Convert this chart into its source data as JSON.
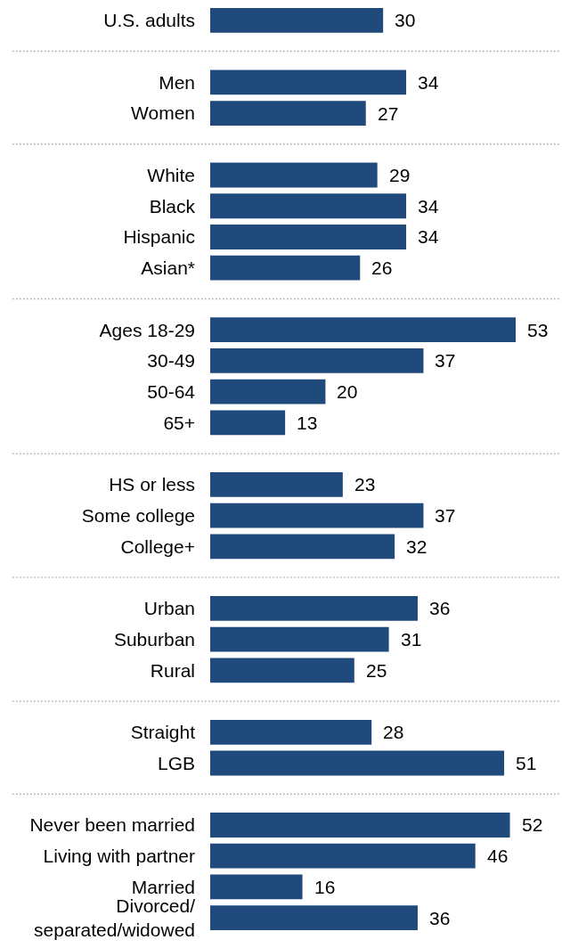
{
  "chart_data": [
    {
      "type": "bar",
      "orientation": "horizontal",
      "categories": [
        "U.S. adults"
      ],
      "values": [
        30
      ],
      "color": "#214a7c",
      "data_labels": true,
      "tick_labels": "y"
    },
    {
      "type": "bar",
      "orientation": "horizontal",
      "categories": [
        "Men",
        "Women"
      ],
      "values": [
        34,
        27
      ],
      "color": "#214a7c",
      "data_labels": true,
      "tick_labels": "y"
    },
    {
      "type": "bar",
      "orientation": "horizontal",
      "categories": [
        "White",
        "Black",
        "Hispanic",
        "Asian*"
      ],
      "values": [
        29,
        34,
        34,
        26
      ],
      "color": "#214a7c",
      "data_labels": true,
      "tick_labels": "y"
    },
    {
      "type": "bar",
      "orientation": "horizontal",
      "categories": [
        "Ages 18-29",
        "30-49",
        "50-64",
        "65+"
      ],
      "values": [
        53,
        37,
        20,
        13
      ],
      "color": "#214a7c",
      "data_labels": true,
      "tick_labels": "y"
    },
    {
      "type": "bar",
      "orientation": "horizontal",
      "categories": [
        "HS or less",
        "Some college",
        "College+"
      ],
      "values": [
        23,
        37,
        32
      ],
      "color": "#214a7c",
      "data_labels": true,
      "tick_labels": "y"
    },
    {
      "type": "bar",
      "orientation": "horizontal",
      "categories": [
        "Urban",
        "Suburban",
        "Rural"
      ],
      "values": [
        36,
        31,
        25
      ],
      "color": "#214a7c",
      "data_labels": true,
      "tick_labels": "y"
    },
    {
      "type": "bar",
      "orientation": "horizontal",
      "categories": [
        "Straight",
        "LGB"
      ],
      "values": [
        28,
        51
      ],
      "color": "#214a7c",
      "data_labels": true,
      "tick_labels": "y"
    },
    {
      "type": "bar",
      "orientation": "horizontal",
      "categories": [
        "Never been married",
        "Living with partner",
        "Married",
        "Divorced/separated/widowed"
      ],
      "values": [
        52,
        46,
        16,
        36
      ],
      "color": "#214a7c",
      "data_labels": true,
      "tick_labels": "y"
    }
  ]
}
